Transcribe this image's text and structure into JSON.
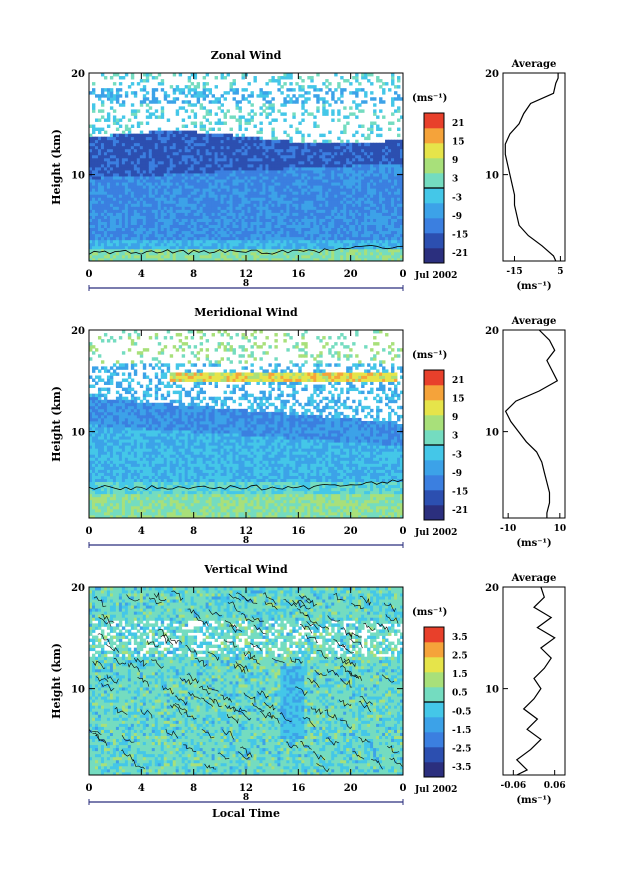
{
  "chart_data": [
    {
      "type": "heatmap",
      "title": "Zonal Wind",
      "xlabel": "",
      "ylabel": "Height (km)",
      "xlim": [
        0,
        24
      ],
      "ylim": [
        1.5,
        20
      ],
      "x_ticks": [
        "0",
        "4",
        "8",
        "12",
        "16",
        "20",
        "0"
      ],
      "y_ticks": [
        "10",
        "20"
      ],
      "date_bar_label": "8",
      "date_text": "Jul 2002",
      "colorbar_unit": "(ms⁻¹)",
      "colorbar_ticks": [
        "21",
        "15",
        "9",
        "3",
        "-3",
        "-9",
        "-15",
        "-21"
      ],
      "zero_contour_km": 2.4,
      "average_profile": {
        "title": "Average",
        "xlabel": "(ms⁻¹)",
        "x_ticks": [
          "-15",
          "5"
        ],
        "xlim": [
          -20,
          7
        ],
        "y_ticks": [
          "10",
          "20"
        ],
        "heights": [
          1.5,
          2,
          3,
          4,
          5,
          6,
          7,
          8,
          9,
          10,
          11,
          12,
          13,
          14,
          15,
          16,
          17,
          18,
          19,
          19.5,
          20
        ],
        "values": [
          3,
          2,
          -3,
          -9,
          -13,
          -14,
          -15,
          -15,
          -16,
          -17,
          -18,
          -19,
          -19,
          -17,
          -13,
          -11,
          -8,
          2,
          3,
          4,
          4
        ]
      }
    },
    {
      "type": "heatmap",
      "title": "Meridional Wind",
      "xlabel": "",
      "ylabel": "Height (km)",
      "xlim": [
        0,
        24
      ],
      "ylim": [
        1.5,
        20
      ],
      "x_ticks": [
        "0",
        "4",
        "8",
        "12",
        "16",
        "20",
        "0"
      ],
      "y_ticks": [
        "10",
        "20"
      ],
      "date_bar_label": "8",
      "date_text": "Jul 2002",
      "colorbar_unit": "(ms⁻¹)",
      "colorbar_ticks": [
        "21",
        "15",
        "9",
        "3",
        "-3",
        "-9",
        "-15",
        "-21"
      ],
      "zero_contour_km": 4.5,
      "average_profile": {
        "title": "Average",
        "xlabel": "(ms⁻¹)",
        "x_ticks": [
          "-10",
          "10"
        ],
        "xlim": [
          -12,
          12
        ],
        "y_ticks": [
          "10",
          "20"
        ],
        "heights": [
          1.5,
          2,
          3,
          4,
          5,
          6,
          7,
          8,
          9,
          10,
          11,
          12,
          13,
          14,
          15,
          16,
          17,
          18,
          19,
          20
        ],
        "values": [
          5,
          5,
          6,
          6,
          5,
          4,
          3,
          1,
          -3,
          -6,
          -9,
          -11,
          -7,
          2,
          9,
          7,
          5,
          8,
          6,
          2
        ]
      }
    },
    {
      "type": "heatmap",
      "title": "Vertical Wind",
      "xlabel": "Local Time",
      "ylabel": "Height (km)",
      "xlim": [
        0,
        24
      ],
      "ylim": [
        1.5,
        20
      ],
      "x_ticks": [
        "0",
        "4",
        "8",
        "12",
        "16",
        "20",
        "0"
      ],
      "y_ticks": [
        "10",
        "20"
      ],
      "date_bar_label": "8",
      "date_text": "Jul 2002",
      "colorbar_unit": "(ms⁻¹)",
      "colorbar_ticks": [
        "3.5",
        "2.5",
        "1.5",
        "0.5",
        "-0.5",
        "-1.5",
        "-2.5",
        "-3.5"
      ],
      "zero_contour_km": null,
      "average_profile": {
        "title": "Average",
        "xlabel": "(ms⁻¹)",
        "x_ticks": [
          "-0.06",
          "0.06"
        ],
        "xlim": [
          -0.09,
          0.09
        ],
        "y_ticks": [
          "10",
          "20"
        ],
        "heights": [
          1.5,
          2,
          3,
          4,
          5,
          6,
          7,
          8,
          9,
          10,
          11,
          12,
          13,
          14,
          15,
          16,
          17,
          18,
          19,
          20
        ],
        "values": [
          -0.05,
          -0.02,
          -0.05,
          -0.01,
          0.02,
          -0.02,
          0.01,
          -0.03,
          0.0,
          0.02,
          0.0,
          0.03,
          0.05,
          0.02,
          0.06,
          0.01,
          0.05,
          0.0,
          0.03,
          0.02
        ]
      }
    }
  ]
}
